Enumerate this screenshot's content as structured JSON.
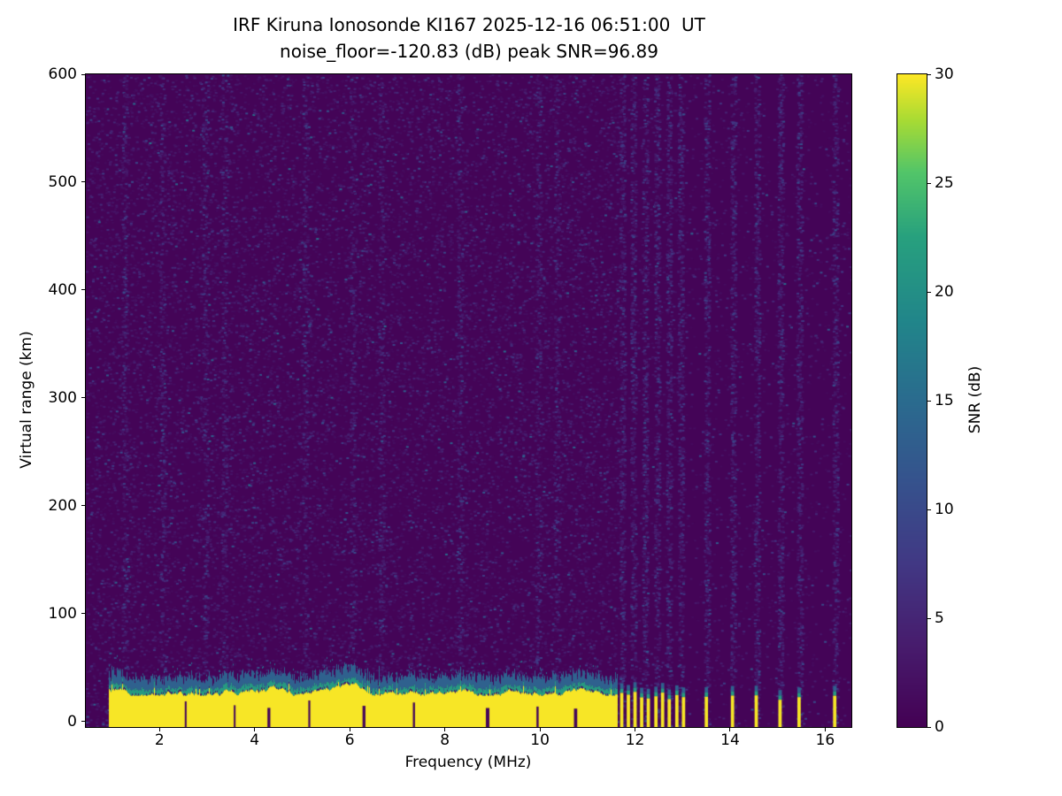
{
  "chart_data": {
    "type": "heatmap",
    "title": "IRF Kiruna Ionosonde KI167 2025-12-16 06:51:00  UT",
    "subtitle": "noise_floor=-120.83 (dB) peak SNR=96.89",
    "xlabel": "Frequency (MHz)",
    "ylabel": "Virtual range (km)",
    "xlim": [
      0.45,
      16.55
    ],
    "ylim": [
      -5,
      600
    ],
    "xticks": [
      2,
      4,
      6,
      8,
      10,
      12,
      14,
      16
    ],
    "yticks": [
      0,
      100,
      200,
      300,
      400,
      500,
      600
    ],
    "colormap": "viridis",
    "colorbar": {
      "label": "SNR (dB)",
      "ticks": [
        0,
        5,
        10,
        15,
        20,
        25,
        30
      ],
      "range": [
        0,
        30
      ]
    },
    "background_snr_db": 0.5,
    "noise": {
      "seed": 42,
      "speckle_count": 26000,
      "speckle_snr_db": [
        1.2,
        10
      ]
    },
    "ground_echo": {
      "freq_range_mhz": [
        0.95,
        11.62
      ],
      "core_top_km": [
        24,
        36
      ],
      "fringe_top_km": [
        32,
        55
      ],
      "core_snr_db": 30,
      "fringe_snr_db": [
        12,
        22
      ]
    },
    "notches_mhz": [
      2.55,
      3.58,
      4.3,
      5.15,
      6.3,
      7.35,
      8.9,
      9.95,
      10.75
    ],
    "rfi_columns_mhz": [
      1.25,
      2.05,
      2.95,
      3.35,
      5.05,
      6.05,
      6.65,
      8.3,
      9.95,
      10.35,
      11.72,
      11.95,
      12.2,
      12.45,
      12.7,
      12.95,
      13.5,
      14.05,
      14.55,
      15.05,
      15.45,
      16.2
    ],
    "pulses_mhz": [
      11.72,
      11.86,
      12.0,
      12.14,
      12.28,
      12.44,
      12.58,
      12.72,
      12.88,
      13.02,
      13.5,
      14.05,
      14.55,
      15.05,
      15.45,
      16.2
    ],
    "pulse_width_mhz": 0.07,
    "pulse_top_km": [
      20,
      28
    ]
  }
}
